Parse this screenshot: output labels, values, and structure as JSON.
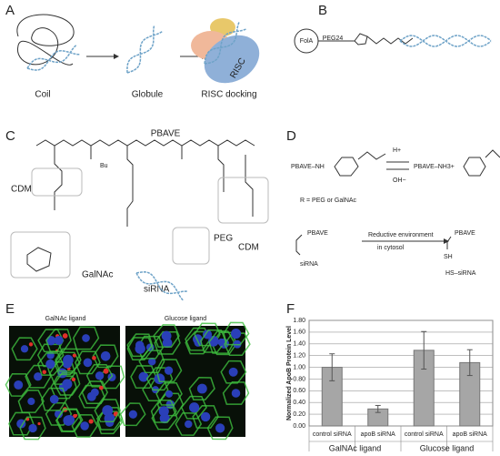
{
  "panels": {
    "a": {
      "label": "A",
      "coil": "Coil",
      "globule": "Globule",
      "risc_docking": "RISC docking",
      "risc": "RISC"
    },
    "b": {
      "label": "B",
      "fola": "FolA",
      "peg": "PEG24"
    },
    "c": {
      "label": "C",
      "pbave": "PBAVE",
      "cdm_left": "CDM",
      "cdm_right": "CDM",
      "galnac": "GalNAc",
      "sirna": "siRNA",
      "peg": "PEG",
      "bu": "Bu"
    },
    "d": {
      "label": "D",
      "reactant": "PBAVE–NH",
      "acid": "H+",
      "base": "OH−",
      "product": "PBAVE–NH3+",
      "r_def": "R = PEG or GalNAc",
      "pbave_top": "PBAVE",
      "sirna": "siRNA",
      "condition_1": "Reductive environment",
      "condition_2": "in cytosol",
      "pbave_product": "PBAVE",
      "sh": "SH",
      "released": "HS–siRNA"
    },
    "e": {
      "label": "E",
      "left_title": "GalNAc ligand",
      "right_title": "Glucose ligand"
    },
    "f": {
      "label": "F"
    }
  },
  "chart_data": {
    "type": "bar",
    "y_label": "Normalized ApoB Protein Level",
    "categories": [
      "control siRNA",
      "apoB siRNA",
      "control siRNA",
      "apoB siRNA"
    ],
    "groups": [
      "GalNAc ligand",
      "Glucose ligand"
    ],
    "values": [
      1.0,
      0.29,
      1.29,
      1.08
    ],
    "errors": [
      0.23,
      0.06,
      0.32,
      0.22
    ],
    "color": "#a6a6a6",
    "ylim": [
      0,
      1.8
    ],
    "yticks": [
      {
        "value": 0,
        "label": "0.00"
      },
      {
        "value": 0.2,
        "label": "0.20"
      },
      {
        "value": 0.4,
        "label": "0.40"
      },
      {
        "value": 0.6,
        "label": "0.60"
      },
      {
        "value": 0.8,
        "label": "0.80"
      },
      {
        "value": 1.0,
        "label": "1.00"
      },
      {
        "value": 1.2,
        "label": "1.20"
      },
      {
        "value": 1.4,
        "label": "1.40"
      },
      {
        "value": 1.6,
        "label": "1.60"
      },
      {
        "value": 1.8,
        "label": "1.80"
      }
    ],
    "grid": true
  }
}
